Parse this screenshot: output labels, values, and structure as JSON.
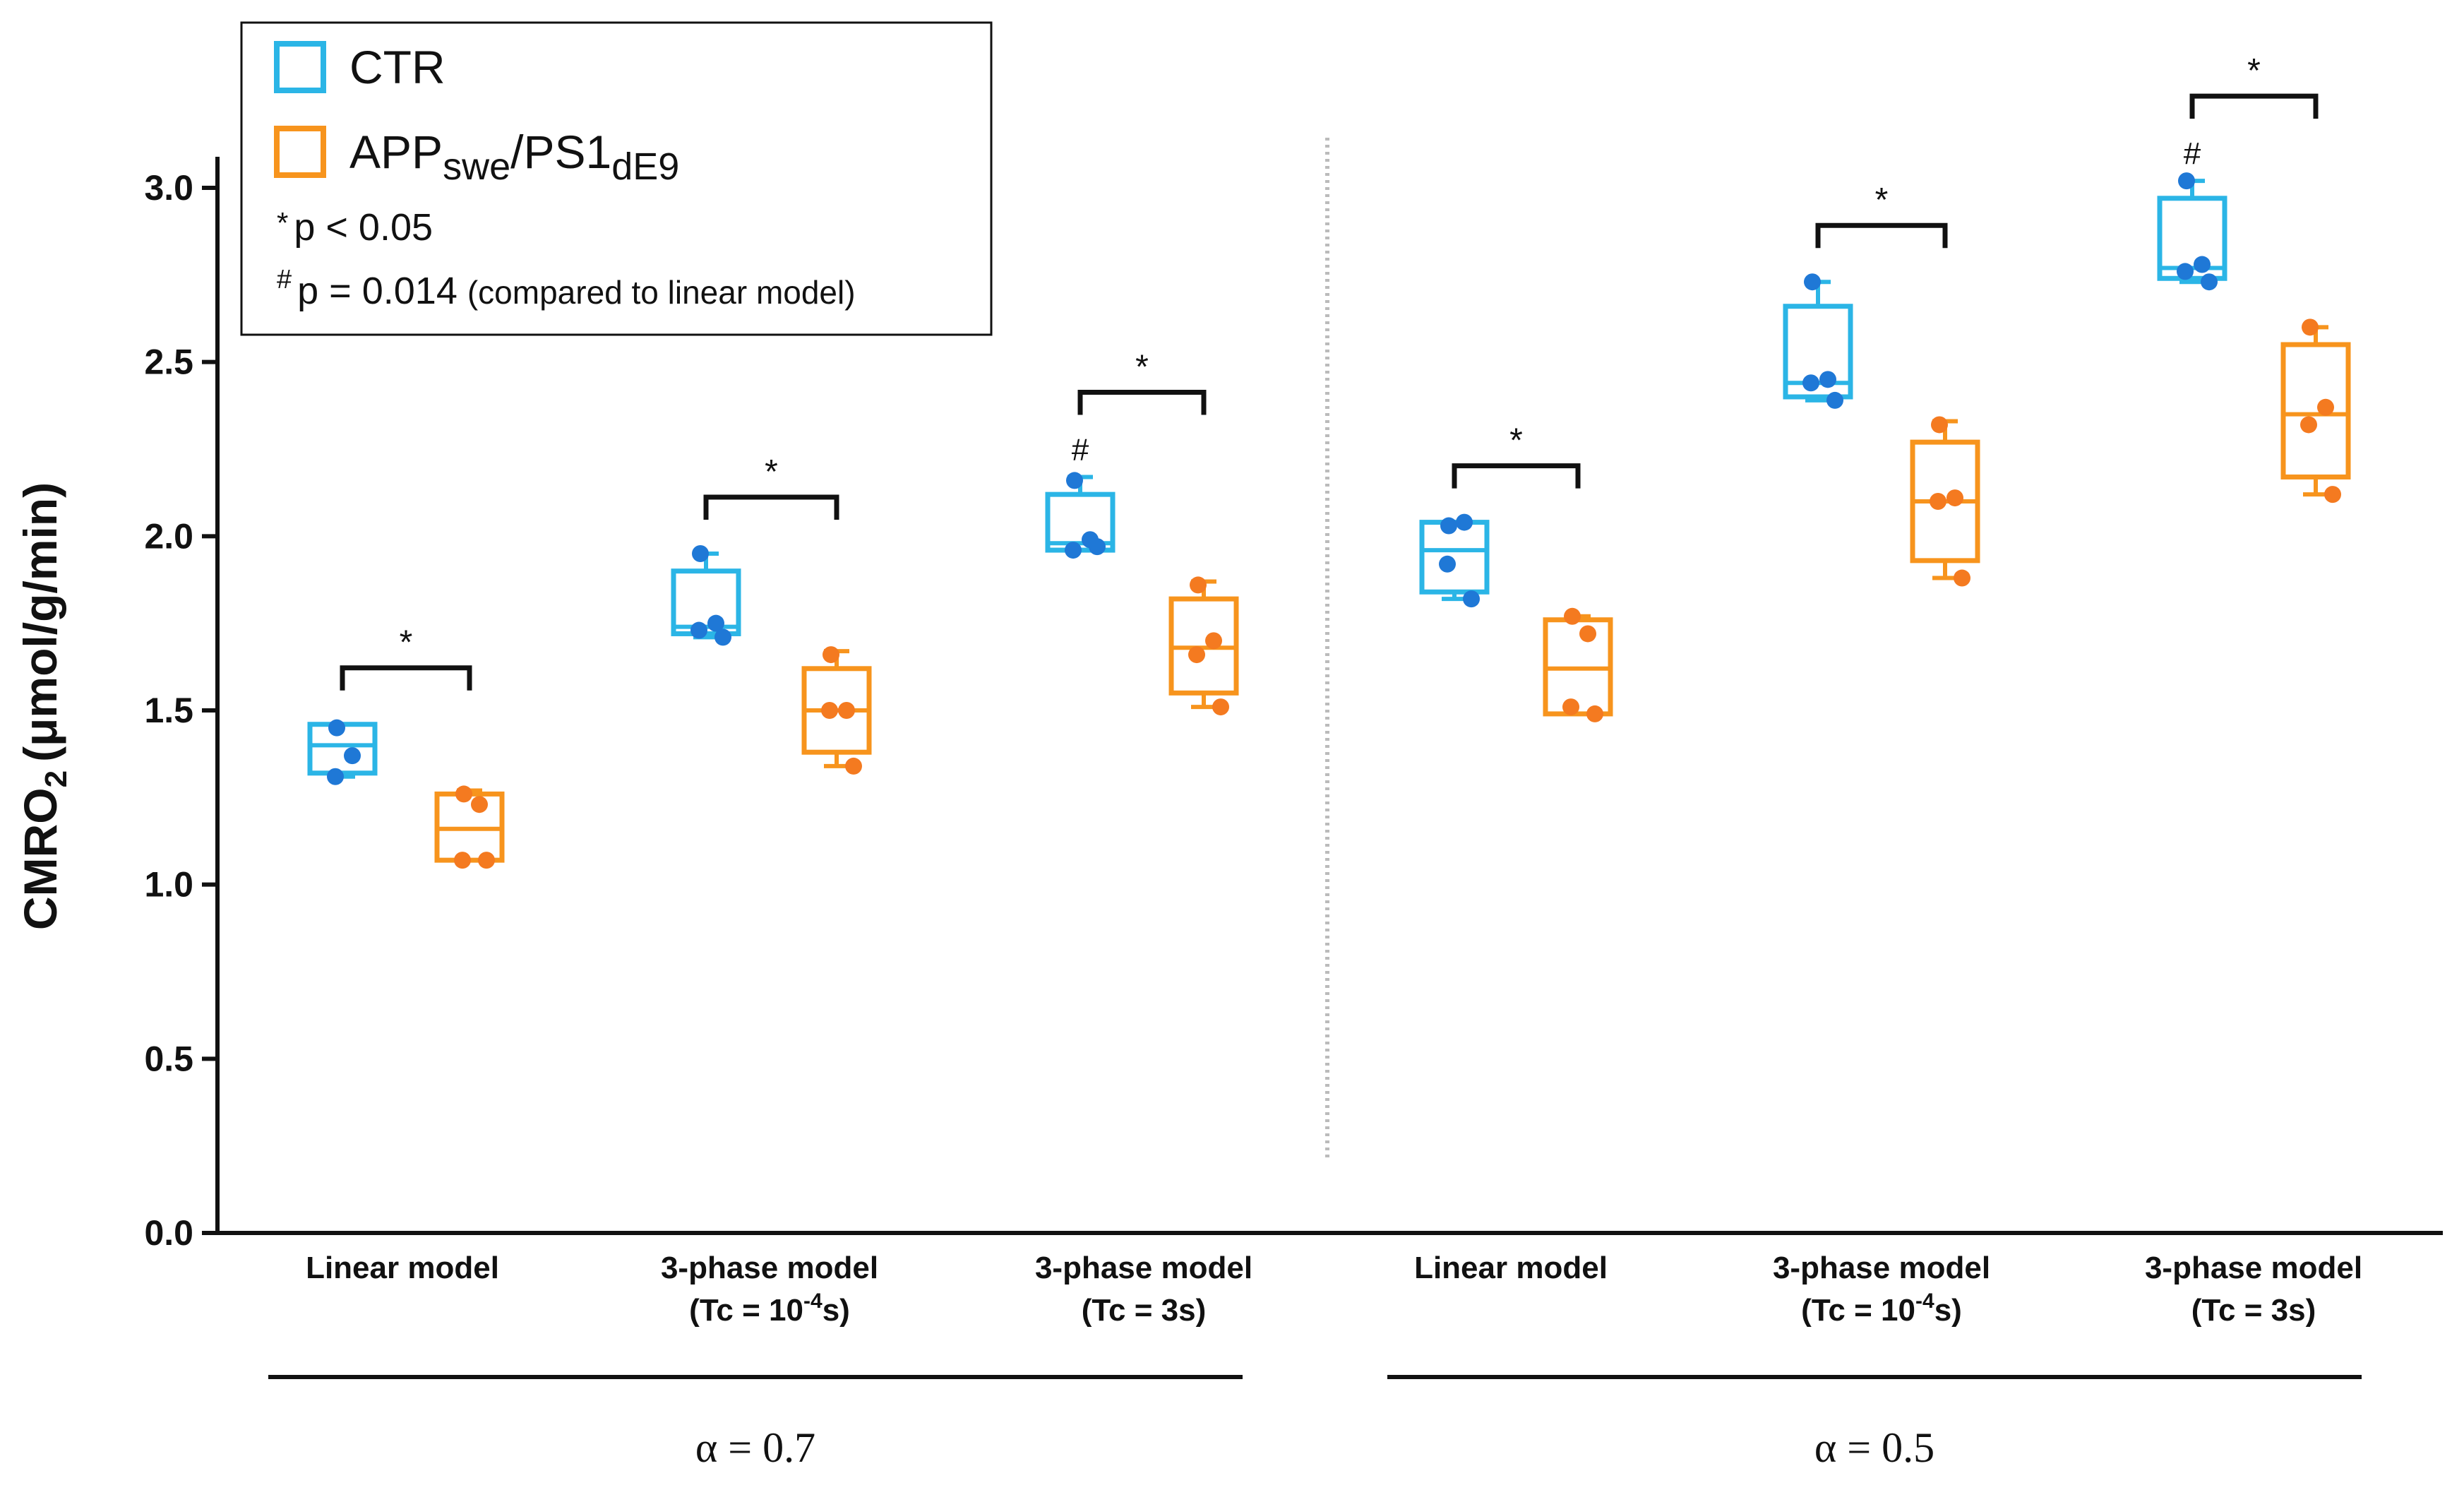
{
  "colors": {
    "ctr": "#2bb5e6",
    "ctr_dot": "#1f78d6",
    "app": "#f7941d",
    "app_dot": "#f47a20",
    "axis": "#111111"
  },
  "legend": {
    "ctr_label": "CTR",
    "app_label": "APP",
    "app_sub1": "swe",
    "app_slash": "/PS1",
    "app_sub2": "dE9",
    "sig_star_symbol": "*",
    "sig_star_text": "p < 0.05",
    "sig_hash_symbol": "#",
    "sig_hash_text": "p = 0.014",
    "sig_hash_note": "(compared to linear model)"
  },
  "chart_data": {
    "type": "box",
    "ylabel_main": "CMRO",
    "ylabel_sub": "2",
    "ylabel_unit": "(μmol/g/min)",
    "ylim": [
      0,
      3.0
    ],
    "yticks": [
      "0.0",
      "0.5",
      "1.0",
      "1.5",
      "2.0",
      "2.5",
      "3.0"
    ],
    "groups": [
      {
        "label": "α = 0.7",
        "categories": [
          {
            "line1": "Linear model",
            "line2": "",
            "line2_sup": "",
            "line2_end": "",
            "ctr": {
              "min": 1.31,
              "q1": 1.32,
              "median": 1.4,
              "q3": 1.46,
              "max": 1.46,
              "points": [
                1.45,
                1.37,
                1.31
              ]
            },
            "app": {
              "min": 1.07,
              "q1": 1.07,
              "median": 1.16,
              "q3": 1.26,
              "max": 1.27,
              "points": [
                1.26,
                1.23,
                1.07,
                1.07
              ]
            },
            "sig": "*",
            "ctr_hash": ""
          },
          {
            "line1": "3-phase model",
            "line2": "(Tc = 10",
            "line2_sup": "-4",
            "line2_end": "s)",
            "ctr": {
              "min": 1.71,
              "q1": 1.72,
              "median": 1.74,
              "q3": 1.9,
              "max": 1.95,
              "points": [
                1.95,
                1.75,
                1.73,
                1.71
              ]
            },
            "app": {
              "min": 1.34,
              "q1": 1.38,
              "median": 1.5,
              "q3": 1.62,
              "max": 1.67,
              "points": [
                1.66,
                1.5,
                1.5,
                1.34
              ]
            },
            "sig": "*",
            "ctr_hash": ""
          },
          {
            "line1": "3-phase model",
            "line2": "(Tc = 3s)",
            "line2_sup": "",
            "line2_end": "",
            "ctr": {
              "min": 1.96,
              "q1": 1.96,
              "median": 1.98,
              "q3": 2.12,
              "max": 2.17,
              "points": [
                2.16,
                1.99,
                1.96,
                1.97
              ]
            },
            "app": {
              "min": 1.51,
              "q1": 1.55,
              "median": 1.68,
              "q3": 1.82,
              "max": 1.87,
              "points": [
                1.86,
                1.7,
                1.66,
                1.51
              ]
            },
            "sig": "*",
            "ctr_hash": "#"
          }
        ]
      },
      {
        "label": "α = 0.5",
        "categories": [
          {
            "line1": "Linear model",
            "line2": "",
            "line2_sup": "",
            "line2_end": "",
            "ctr": {
              "min": 1.82,
              "q1": 1.84,
              "median": 1.96,
              "q3": 2.04,
              "max": 2.04,
              "points": [
                2.03,
                2.04,
                1.92,
                1.82
              ]
            },
            "app": {
              "min": 1.49,
              "q1": 1.49,
              "median": 1.62,
              "q3": 1.76,
              "max": 1.77,
              "points": [
                1.77,
                1.72,
                1.51,
                1.49
              ]
            },
            "sig": "*",
            "ctr_hash": ""
          },
          {
            "line1": "3-phase model",
            "line2": "(Tc = 10",
            "line2_sup": "-4",
            "line2_end": "s)",
            "ctr": {
              "min": 2.39,
              "q1": 2.4,
              "median": 2.44,
              "q3": 2.66,
              "max": 2.73,
              "points": [
                2.73,
                2.45,
                2.44,
                2.39
              ]
            },
            "app": {
              "min": 1.88,
              "q1": 1.93,
              "median": 2.1,
              "q3": 2.27,
              "max": 2.33,
              "points": [
                2.32,
                2.11,
                2.1,
                1.88
              ]
            },
            "sig": "*",
            "ctr_hash": ""
          },
          {
            "line1": "3-phase model",
            "line2": "(Tc = 3s)",
            "line2_sup": "",
            "line2_end": "",
            "ctr": {
              "min": 2.73,
              "q1": 2.74,
              "median": 2.77,
              "q3": 2.97,
              "max": 3.02,
              "points": [
                3.02,
                2.78,
                2.76,
                2.73
              ]
            },
            "app": {
              "min": 2.12,
              "q1": 2.17,
              "median": 2.35,
              "q3": 2.55,
              "max": 2.6,
              "points": [
                2.6,
                2.37,
                2.32,
                2.12
              ]
            },
            "sig": "*",
            "ctr_hash": "#"
          }
        ]
      }
    ]
  }
}
